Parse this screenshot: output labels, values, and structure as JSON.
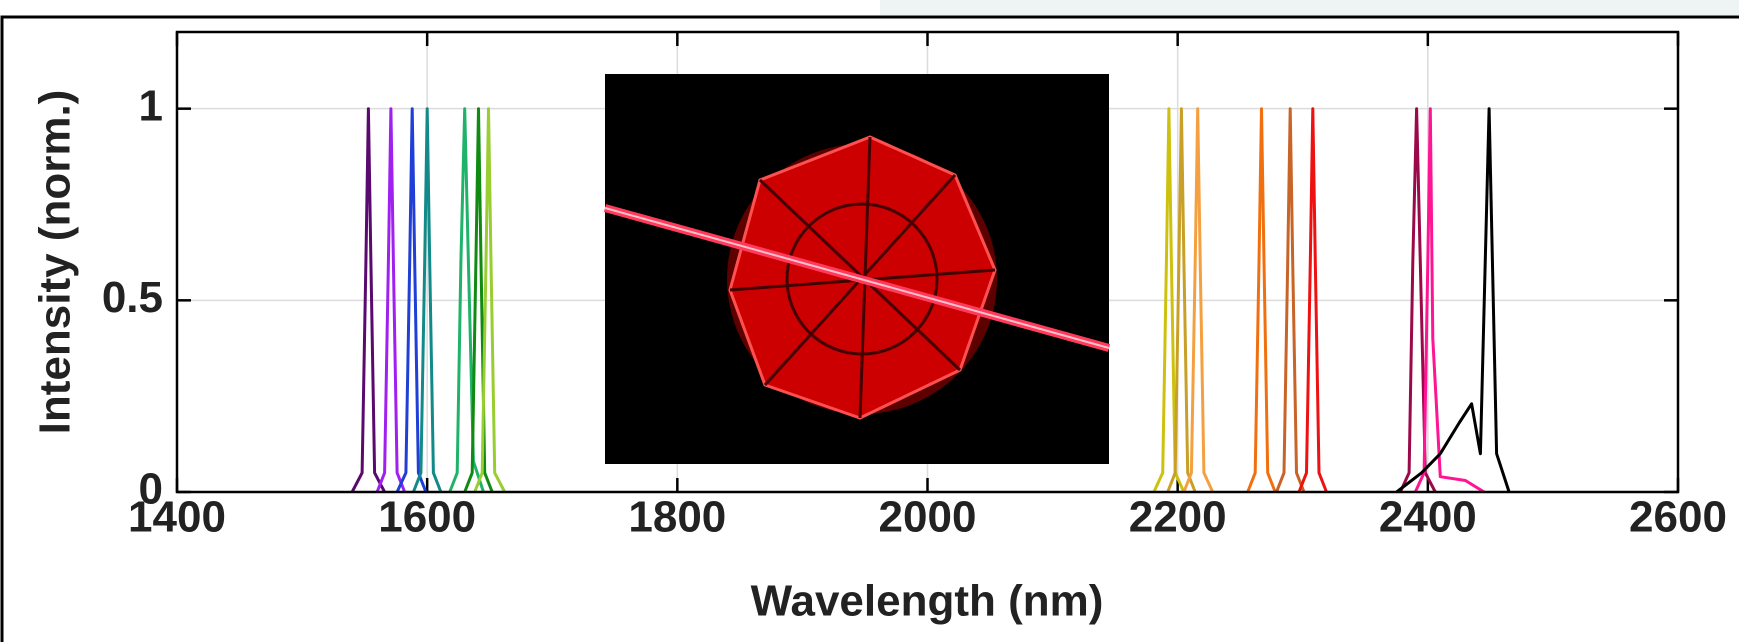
{
  "chart_data": {
    "type": "line",
    "xlabel": "Wavelength (nm)",
    "ylabel": "Intensity (norm.)",
    "xlim": [
      1400,
      2600
    ],
    "xticks": [
      1400,
      1600,
      1800,
      2000,
      2200,
      2400,
      2600
    ],
    "ylim": [
      0,
      1.2
    ],
    "yticks": [
      0,
      0.5,
      1
    ],
    "grid": true,
    "series": [
      {
        "color": "#5a0a6e",
        "x": [
          1540,
          1548,
          1551,
          1553,
          1555,
          1558,
          1566
        ],
        "values": [
          0,
          0.05,
          0.6,
          1,
          0.6,
          0.05,
          0
        ]
      },
      {
        "color": "#a020f0",
        "x": [
          1560,
          1566,
          1569,
          1571,
          1573,
          1576,
          1582
        ],
        "values": [
          0,
          0.05,
          0.6,
          1,
          0.6,
          0.05,
          0
        ]
      },
      {
        "color": "#1f3fd6",
        "x": [
          1576,
          1583,
          1586,
          1588,
          1590,
          1593,
          1599
        ],
        "values": [
          0,
          0.05,
          0.6,
          1,
          0.6,
          0.05,
          0
        ]
      },
      {
        "color": "#138a8a",
        "x": [
          1589,
          1595,
          1598,
          1600,
          1602,
          1605,
          1611
        ],
        "values": [
          0,
          0.05,
          0.6,
          1,
          0.6,
          0.05,
          0
        ]
      },
      {
        "color": "#1fb36a",
        "x": [
          1618,
          1624,
          1627,
          1630,
          1633,
          1637,
          1645
        ],
        "values": [
          0,
          0.05,
          0.6,
          1,
          0.6,
          0.08,
          0
        ]
      },
      {
        "color": "#118a11",
        "x": [
          1630,
          1636,
          1639,
          1641,
          1643,
          1646,
          1652
        ],
        "values": [
          0,
          0.05,
          0.6,
          1,
          0.6,
          0.05,
          0
        ]
      },
      {
        "color": "#9acd32",
        "x": [
          1638,
          1644,
          1647,
          1649,
          1651,
          1654,
          1662
        ],
        "values": [
          0,
          0.05,
          0.6,
          1,
          0.6,
          0.05,
          0
        ]
      },
      {
        "color": "#cdc10e",
        "x": [
          2181,
          2188,
          2191,
          2193,
          2195,
          2198,
          2205
        ],
        "values": [
          0,
          0.05,
          0.6,
          1,
          0.6,
          0.05,
          0
        ]
      },
      {
        "color": "#c8a028",
        "x": [
          2192,
          2198,
          2201,
          2203,
          2205,
          2208,
          2214
        ],
        "values": [
          0,
          0.05,
          0.6,
          1,
          0.6,
          0.05,
          0
        ]
      },
      {
        "color": "#f5a040",
        "x": [
          2205,
          2211,
          2214,
          2216,
          2218,
          2221,
          2228
        ],
        "values": [
          0,
          0.05,
          0.6,
          1,
          0.6,
          0.05,
          0
        ]
      },
      {
        "color": "#f07010",
        "x": [
          2256,
          2262,
          2265,
          2267,
          2269,
          2272,
          2278
        ],
        "values": [
          0,
          0.05,
          0.6,
          1,
          0.6,
          0.05,
          0
        ]
      },
      {
        "color": "#c86428",
        "x": [
          2279,
          2285,
          2288,
          2290,
          2292,
          2295,
          2301
        ],
        "values": [
          0,
          0.05,
          0.6,
          1,
          0.6,
          0.05,
          0
        ]
      },
      {
        "color": "#ee1111",
        "x": [
          2297,
          2303,
          2306,
          2308,
          2310,
          2313,
          2319
        ],
        "values": [
          0,
          0.05,
          0.6,
          1,
          0.6,
          0.05,
          0
        ]
      },
      {
        "color": "#9a0a4a",
        "x": [
          2378,
          2385,
          2388,
          2391,
          2394,
          2398,
          2406
        ],
        "values": [
          0,
          0.05,
          0.6,
          1,
          0.6,
          0.05,
          0
        ]
      },
      {
        "color": "#ff1493",
        "x": [
          2390,
          2397,
          2400,
          2402,
          2404,
          2410,
          2430,
          2445
        ],
        "values": [
          0,
          0.05,
          0.6,
          1,
          0.4,
          0.04,
          0.03,
          0
        ]
      },
      {
        "color": "#000000",
        "x": [
          2375,
          2395,
          2410,
          2425,
          2435,
          2442,
          2449,
          2455,
          2465
        ],
        "values": [
          0,
          0.05,
          0.1,
          0.18,
          0.23,
          0.1,
          1,
          0.1,
          0
        ]
      }
    ]
  }
}
